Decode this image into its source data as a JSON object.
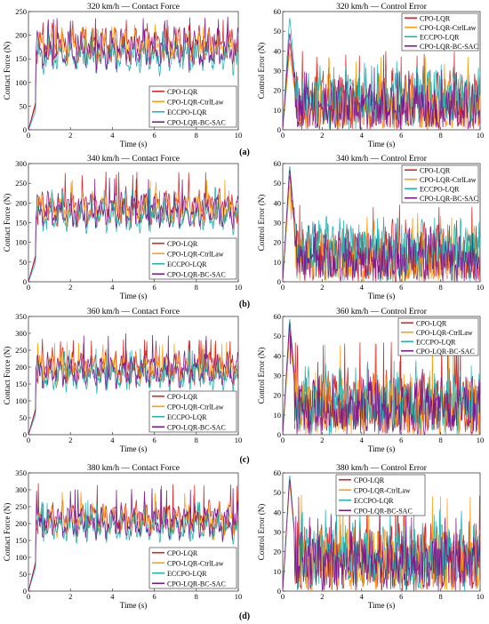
{
  "colors": {
    "CPO-LQR": "#d62728",
    "CPO-LQR-CtrlLaw": "#ff9f0f",
    "ECCPO-LQR": "#22b3b3",
    "CPO-LQR-BC-SAC": "#7f1a8c"
  },
  "chart_data": [
    {
      "type": "line",
      "title": "320 km/h — Contact Force",
      "xlabel": "Time (s)",
      "ylabel": "Contact Force (N)",
      "xlim": [
        0,
        10
      ],
      "ylim": [
        0,
        250
      ],
      "xticks": [
        0,
        2,
        4,
        6,
        8,
        10
      ],
      "yticks": [
        0,
        50,
        100,
        150,
        200,
        250
      ],
      "legend": "bottom-right",
      "series": [
        {
          "name": "CPO-LQR",
          "mean": 180,
          "amp": 40,
          "peak": 235,
          "start": 60
        },
        {
          "name": "CPO-LQR-CtrlLaw",
          "mean": 175,
          "amp": 38,
          "peak": 225,
          "start": 50
        },
        {
          "name": "ECCPO-LQR",
          "mean": 155,
          "amp": 35,
          "peak": 215,
          "start": 40
        },
        {
          "name": "CPO-LQR-BC-SAC",
          "mean": 170,
          "amp": 42,
          "peak": 240,
          "start": 55
        }
      ]
    },
    {
      "type": "line",
      "title": "320 km/h — Control Error",
      "xlabel": "Time (s)",
      "ylabel": "Control Error (N)",
      "xlim": [
        0,
        10
      ],
      "ylim": [
        0,
        60
      ],
      "xticks": [
        0,
        2,
        4,
        6,
        8,
        10
      ],
      "yticks": [
        0,
        10,
        20,
        30,
        40,
        50,
        60
      ],
      "legend": "top-right",
      "series": [
        {
          "name": "CPO-LQR",
          "mean": 14,
          "amp": 12,
          "peak": 40,
          "start": 45
        },
        {
          "name": "CPO-LQR-CtrlLaw",
          "mean": 12,
          "amp": 11,
          "peak": 37,
          "start": 40
        },
        {
          "name": "ECCPO-LQR",
          "mean": 17,
          "amp": 12,
          "peak": 31,
          "start": 58
        },
        {
          "name": "CPO-LQR-BC-SAC",
          "mean": 11,
          "amp": 10,
          "peak": 32,
          "start": 50
        }
      ]
    },
    {
      "type": "line",
      "title": "340 km/h — Contact Force",
      "xlabel": "Time (s)",
      "ylabel": "Contact Force (N)",
      "xlim": [
        0,
        10
      ],
      "ylim": [
        0,
        300
      ],
      "xticks": [
        0,
        2,
        4,
        6,
        8,
        10
      ],
      "yticks": [
        0,
        50,
        100,
        150,
        200,
        250,
        300
      ],
      "legend": "bottom-right",
      "series": [
        {
          "name": "CPO-LQR",
          "mean": 190,
          "amp": 45,
          "peak": 280,
          "start": 70
        },
        {
          "name": "CPO-LQR-CtrlLaw",
          "mean": 185,
          "amp": 42,
          "peak": 260,
          "start": 60
        },
        {
          "name": "ECCPO-LQR",
          "mean": 165,
          "amp": 40,
          "peak": 240,
          "start": 50
        },
        {
          "name": "CPO-LQR-BC-SAC",
          "mean": 180,
          "amp": 45,
          "peak": 265,
          "start": 65
        }
      ]
    },
    {
      "type": "line",
      "title": "340 km/h — Control Error",
      "xlabel": "Time (s)",
      "ylabel": "Control Error (N)",
      "xlim": [
        0,
        10
      ],
      "ylim": [
        0,
        60
      ],
      "xticks": [
        0,
        2,
        4,
        6,
        8,
        10
      ],
      "yticks": [
        0,
        10,
        20,
        30,
        40,
        50,
        60
      ],
      "legend": "top-right",
      "series": [
        {
          "name": "CPO-LQR",
          "mean": 14,
          "amp": 12,
          "peak": 40,
          "start": 55
        },
        {
          "name": "CPO-LQR-CtrlLaw",
          "mean": 12,
          "amp": 11,
          "peak": 35,
          "start": 50
        },
        {
          "name": "ECCPO-LQR",
          "mean": 16,
          "amp": 12,
          "peak": 33,
          "start": 60
        },
        {
          "name": "CPO-LQR-BC-SAC",
          "mean": 11,
          "amp": 10,
          "peak": 30,
          "start": 58
        }
      ]
    },
    {
      "type": "line",
      "title": "360 km/h — Contact Force",
      "xlabel": "Time (s)",
      "ylabel": "Contact Force (N)",
      "xlim": [
        0,
        10
      ],
      "ylim": [
        0,
        350
      ],
      "xticks": [
        0,
        2,
        4,
        6,
        8,
        10
      ],
      "yticks": [
        0,
        50,
        100,
        150,
        200,
        250,
        300,
        350
      ],
      "legend": "bottom-right",
      "series": [
        {
          "name": "CPO-LQR",
          "mean": 200,
          "amp": 50,
          "peak": 285,
          "start": 80
        },
        {
          "name": "CPO-LQR-CtrlLaw",
          "mean": 195,
          "amp": 48,
          "peak": 275,
          "start": 70
        },
        {
          "name": "ECCPO-LQR",
          "mean": 175,
          "amp": 45,
          "peak": 255,
          "start": 60
        },
        {
          "name": "CPO-LQR-BC-SAC",
          "mean": 190,
          "amp": 50,
          "peak": 300,
          "start": 75
        }
      ]
    },
    {
      "type": "line",
      "title": "360 km/h — Control Error",
      "xlabel": "Time (s)",
      "ylabel": "Control Error (N)",
      "xlim": [
        0,
        10
      ],
      "ylim": [
        0,
        60
      ],
      "xticks": [
        0,
        2,
        4,
        6,
        8,
        10
      ],
      "yticks": [
        0,
        10,
        20,
        30,
        40,
        50,
        60
      ],
      "legend": "top-right",
      "series": [
        {
          "name": "CPO-LQR",
          "mean": 15,
          "amp": 13,
          "peak": 48,
          "start": 55
        },
        {
          "name": "CPO-LQR-CtrlLaw",
          "mean": 14,
          "amp": 13,
          "peak": 48,
          "start": 50
        },
        {
          "name": "ECCPO-LQR",
          "mean": 16,
          "amp": 12,
          "peak": 38,
          "start": 60
        },
        {
          "name": "CPO-LQR-BC-SAC",
          "mean": 13,
          "amp": 12,
          "peak": 37,
          "start": 58
        }
      ]
    },
    {
      "type": "line",
      "title": "380 km/h — Contact Force",
      "xlabel": "Time (s)",
      "ylabel": "Contact Force (N)",
      "xlim": [
        0,
        10
      ],
      "ylim": [
        0,
        350
      ],
      "xticks": [
        0,
        2,
        4,
        6,
        8,
        10
      ],
      "yticks": [
        0,
        50,
        100,
        150,
        200,
        250,
        300,
        350
      ],
      "legend": "bottom-right",
      "series": [
        {
          "name": "CPO-LQR",
          "mean": 215,
          "amp": 50,
          "peak": 320,
          "start": 90
        },
        {
          "name": "CPO-LQR-CtrlLaw",
          "mean": 210,
          "amp": 48,
          "peak": 295,
          "start": 80
        },
        {
          "name": "ECCPO-LQR",
          "mean": 190,
          "amp": 45,
          "peak": 270,
          "start": 70
        },
        {
          "name": "CPO-LQR-BC-SAC",
          "mean": 205,
          "amp": 50,
          "peak": 305,
          "start": 85
        }
      ]
    },
    {
      "type": "line",
      "title": "380 km/h — Control Error",
      "xlabel": "Time (s)",
      "ylabel": "Control Error (N)",
      "xlim": [
        0,
        10
      ],
      "ylim": [
        0,
        60
      ],
      "xticks": [
        0,
        2,
        4,
        6,
        8,
        10
      ],
      "yticks": [
        0,
        10,
        20,
        30,
        40,
        50,
        60
      ],
      "legend": "top-right",
      "series": [
        {
          "name": "CPO-LQR",
          "mean": 16,
          "amp": 14,
          "peak": 51,
          "start": 58
        },
        {
          "name": "CPO-LQR-CtrlLaw",
          "mean": 15,
          "amp": 13,
          "peak": 49,
          "start": 55
        },
        {
          "name": "ECCPO-LQR",
          "mean": 17,
          "amp": 13,
          "peak": 42,
          "start": 60
        },
        {
          "name": "CPO-LQR-BC-SAC",
          "mean": 14,
          "amp": 12,
          "peak": 40,
          "start": 58
        }
      ]
    }
  ],
  "row_labels": [
    "(a)",
    "(b)",
    "(c)",
    "(d)"
  ]
}
